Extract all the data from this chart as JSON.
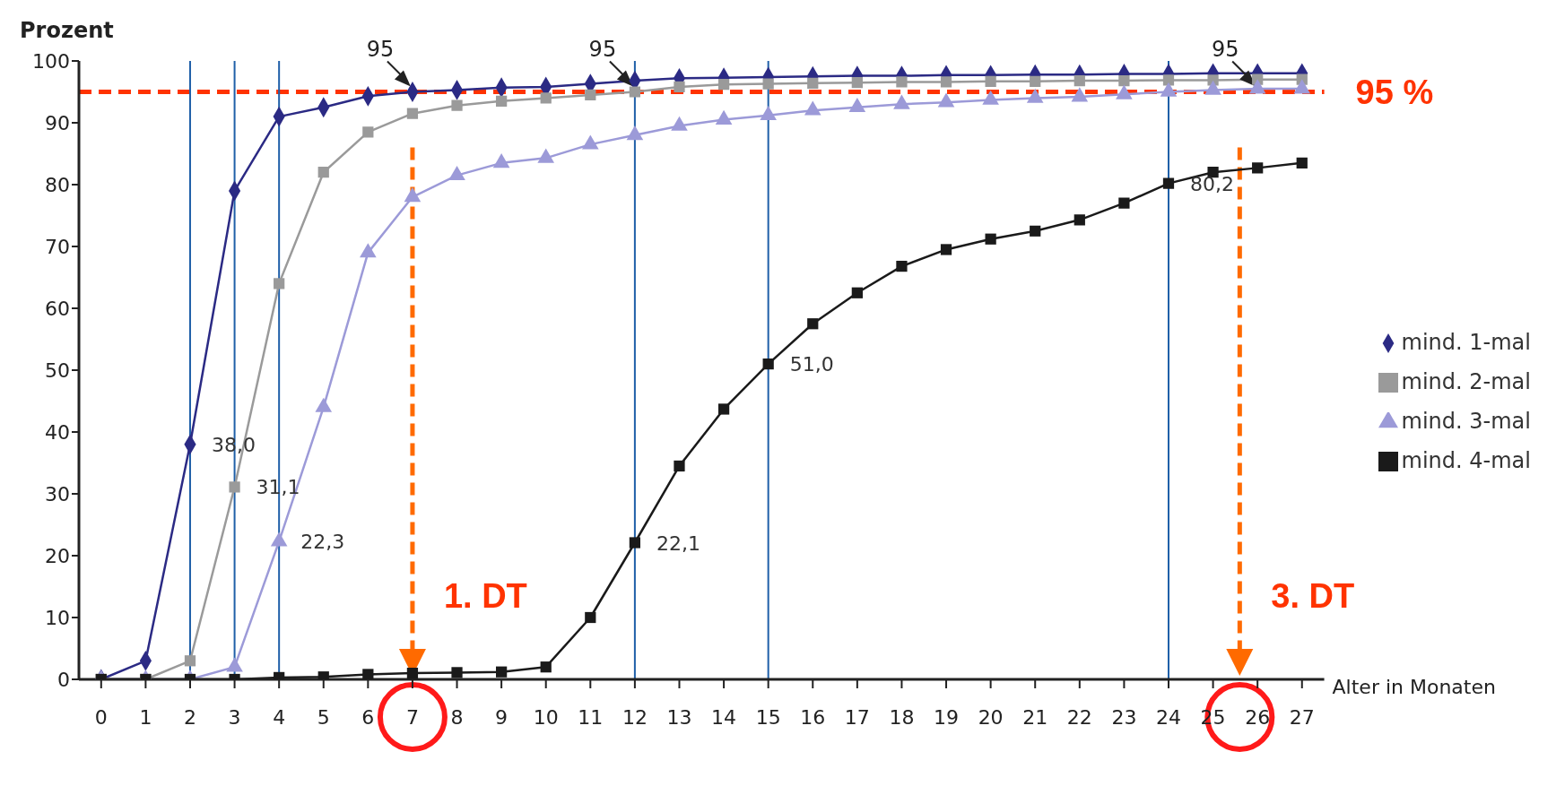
{
  "chart_data": {
    "type": "line",
    "ylabel": "Prozent",
    "xlabel": "Alter in Monaten",
    "x": [
      0,
      1,
      2,
      3,
      4,
      5,
      6,
      7,
      8,
      9,
      10,
      11,
      12,
      13,
      14,
      15,
      16,
      17,
      18,
      19,
      20,
      21,
      22,
      23,
      24,
      25,
      26,
      27
    ],
    "xlim": [
      -0.5,
      27.5
    ],
    "xticks": [
      0,
      1,
      2,
      3,
      4,
      5,
      6,
      7,
      8,
      9,
      10,
      11,
      12,
      13,
      14,
      15,
      16,
      17,
      18,
      19,
      20,
      21,
      22,
      23,
      24,
      25,
      26,
      27
    ],
    "ylim": [
      0,
      100
    ],
    "yticks": [
      0,
      10,
      20,
      30,
      40,
      50,
      60,
      70,
      80,
      90,
      100
    ],
    "grid": false,
    "legend": "right",
    "line_style": "solid",
    "series": [
      {
        "name": "mind. 1-mal",
        "color": "#2b2a84",
        "marker": "diamond",
        "values": [
          0,
          3,
          38.0,
          79,
          91,
          92.5,
          94.3,
          95,
          95.3,
          95.7,
          95.8,
          96.3,
          96.8,
          97.2,
          97.3,
          97.4,
          97.5,
          97.6,
          97.6,
          97.7,
          97.7,
          97.8,
          97.8,
          97.9,
          97.9,
          98,
          98,
          98
        ],
        "value_labels": [
          null,
          null,
          "38,0",
          null,
          null,
          null,
          null,
          null,
          null,
          null,
          null,
          null,
          null,
          null,
          null,
          null,
          null,
          null,
          null,
          null,
          null,
          null,
          null,
          null,
          null,
          null,
          null,
          null
        ]
      },
      {
        "name": "mind. 2-mal",
        "color": "#9a9a9a",
        "marker": "square",
        "values": [
          0,
          0,
          3,
          31.1,
          64,
          82,
          88.5,
          91.5,
          92.8,
          93.5,
          94,
          94.5,
          95,
          95.8,
          96.2,
          96.3,
          96.4,
          96.5,
          96.6,
          96.6,
          96.7,
          96.7,
          96.8,
          96.8,
          96.9,
          96.9,
          97,
          97
        ],
        "value_labels": [
          null,
          null,
          null,
          "31,1",
          null,
          null,
          null,
          null,
          null,
          null,
          null,
          null,
          null,
          null,
          null,
          null,
          null,
          null,
          null,
          null,
          null,
          null,
          null,
          null,
          null,
          null,
          null,
          null
        ]
      },
      {
        "name": "mind. 3-mal",
        "color": "#9c9ad8",
        "marker": "triangle",
        "values": [
          0,
          0,
          0,
          2,
          22.3,
          44,
          69,
          78,
          81.5,
          83.5,
          84.3,
          86.5,
          88,
          89.5,
          90.5,
          91.2,
          92,
          92.5,
          93,
          93.3,
          93.7,
          94,
          94.2,
          94.6,
          95,
          95.3,
          95.5,
          95.5
        ],
        "value_labels": [
          null,
          null,
          null,
          null,
          "22,3",
          null,
          null,
          null,
          null,
          null,
          null,
          null,
          null,
          null,
          null,
          null,
          null,
          null,
          null,
          null,
          null,
          null,
          null,
          null,
          null,
          null,
          null,
          null
        ]
      },
      {
        "name": "mind. 4-mal",
        "color": "#1a1a1a",
        "marker": "square",
        "values": [
          0,
          0,
          0,
          0,
          0.3,
          0.4,
          0.8,
          1,
          1.1,
          1.2,
          2,
          10,
          22.1,
          34.5,
          43.7,
          51.0,
          57.5,
          62.5,
          66.8,
          69.5,
          71.2,
          72.5,
          74.3,
          77,
          80.2,
          82,
          82.7,
          83.5
        ],
        "value_labels": [
          null,
          null,
          null,
          null,
          null,
          null,
          null,
          null,
          null,
          null,
          null,
          null,
          "22,1",
          null,
          null,
          "51,0",
          null,
          null,
          null,
          null,
          null,
          null,
          null,
          null,
          "80,2",
          null,
          null,
          null
        ]
      }
    ],
    "ref_lines": [
      {
        "axis": "y",
        "value": 95,
        "label": "95 %",
        "color": "#ff3300",
        "line_style": "dashed"
      },
      {
        "axis": "x",
        "value": 2,
        "color": "#1f5fa8"
      },
      {
        "axis": "x",
        "value": 3,
        "color": "#1f5fa8"
      },
      {
        "axis": "x",
        "value": 4,
        "color": "#1f5fa8"
      },
      {
        "axis": "x",
        "value": 12,
        "color": "#1f5fa8"
      },
      {
        "axis": "x",
        "value": 15,
        "color": "#1f5fa8"
      },
      {
        "axis": "x",
        "value": 24,
        "color": "#1f5fa8"
      },
      {
        "axis": "x",
        "value": 7,
        "label": "1. DT",
        "color": "#ff6a00",
        "line_style": "dashed"
      },
      {
        "axis": "x",
        "value": 25.6,
        "label": "3. DT",
        "color": "#ff6a00",
        "line_style": "dashed"
      }
    ],
    "annotations": [
      {
        "text": "95",
        "x": 7,
        "y": 95
      },
      {
        "text": "95",
        "x": 12,
        "y": 95
      },
      {
        "text": "95",
        "x": 26,
        "y": 95
      }
    ]
  }
}
